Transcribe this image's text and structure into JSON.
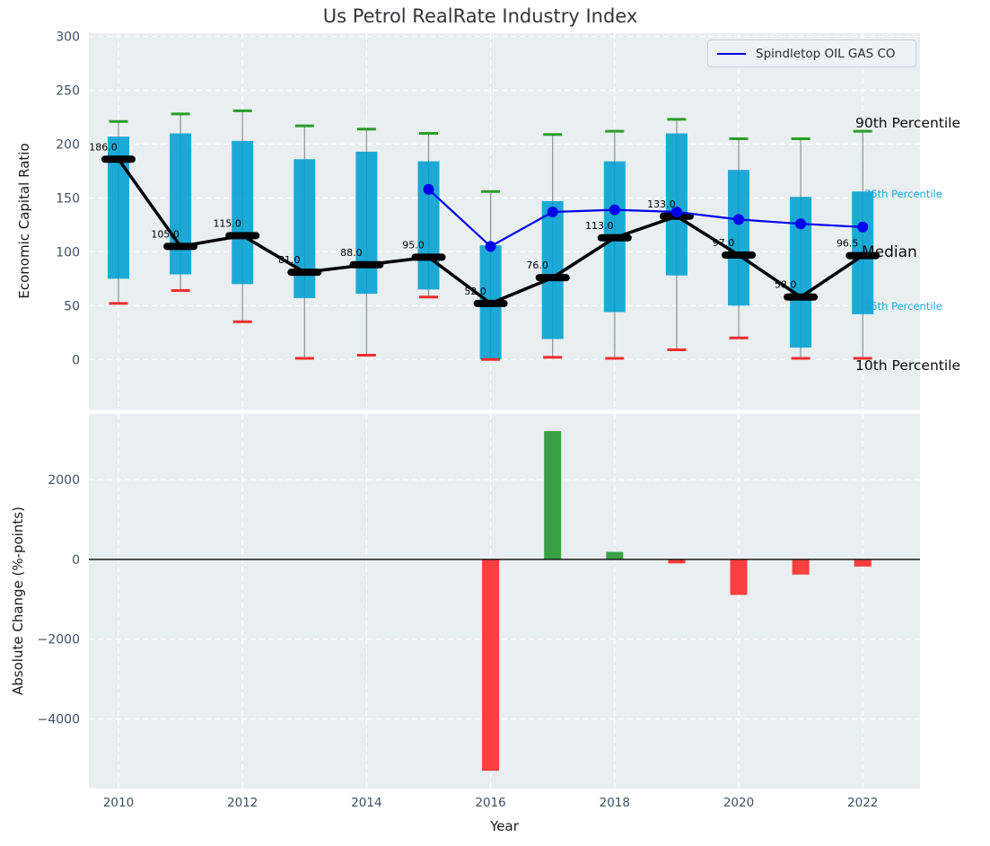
{
  "title": "Us Petrol RealRate Industry Index",
  "legend": {
    "label": "Spindletop OIL GAS CO"
  },
  "annotations": {
    "p90": "90th Percentile",
    "p75": "75th Percentile",
    "median": "Median",
    "p25": "25th Percentile",
    "p10": "10th Percentile"
  },
  "colors": {
    "plot_bg": "#e9eef0",
    "grid": "#ffffff",
    "box": "#009fd0",
    "whisker": "#909090",
    "cap_top": "#2a9d2a",
    "cap_bottom": "#ed2d2d",
    "median_line": "#000000",
    "company_line": "#0000f0",
    "bar_positive": "#3aa044",
    "bar_negative": "#fb3e3e",
    "zero_line": "#1a1a1a",
    "tick_text": "#3e5063"
  },
  "chart_data": [
    {
      "type": "boxplot+line",
      "title": "Us Petrol RealRate Industry Index",
      "ylabel": "Economic Capital Ratio",
      "ylim": [
        -46.5,
        303
      ],
      "yticks": [
        0,
        50,
        100,
        150,
        200,
        250,
        300
      ],
      "grid": true,
      "legend_position": "upper right",
      "categories": [
        2010,
        2011,
        2012,
        2013,
        2014,
        2015,
        2016,
        2017,
        2018,
        2019,
        2020,
        2021,
        2022
      ],
      "boxes": {
        "p90": [
          221,
          228,
          231,
          217,
          214,
          210,
          156,
          209,
          212,
          223,
          205,
          205,
          212
        ],
        "p75": [
          207,
          210,
          203,
          186,
          193,
          184,
          106,
          147,
          184,
          210,
          176,
          151,
          156
        ],
        "median": [
          186,
          105,
          115,
          81,
          88,
          95,
          52,
          76,
          113,
          133,
          97,
          58,
          96.5
        ],
        "p25": [
          75,
          79,
          70,
          57,
          61,
          65,
          0,
          19,
          44,
          78,
          50,
          11,
          42
        ],
        "p10": [
          52,
          64,
          35,
          1,
          4,
          58,
          0,
          2,
          1,
          9,
          20,
          1,
          1
        ]
      },
      "median_labels": [
        "186.0",
        "105.0",
        "115.0",
        "81.0",
        "88.0",
        "95.0",
        "52.0",
        "76.0",
        "113.0",
        "133.0",
        "97.0",
        "58.0",
        "96.5"
      ],
      "series": [
        {
          "name": "Spindletop OIL GAS CO",
          "x": [
            2015,
            2016,
            2017,
            2018,
            2019,
            2020,
            2021,
            2022
          ],
          "values": [
            158,
            105,
            137,
            139,
            137,
            130,
            126,
            123
          ]
        }
      ]
    },
    {
      "type": "bar",
      "ylabel": "Absolute Change (%-points)",
      "xlabel": "Year",
      "ylim": [
        -5746,
        3647
      ],
      "yticks": [
        2000,
        0,
        -2000,
        -4000
      ],
      "xticks": [
        2010,
        2012,
        2014,
        2016,
        2018,
        2020,
        2022
      ],
      "grid": true,
      "categories": [
        2010,
        2011,
        2012,
        2013,
        2014,
        2015,
        2016,
        2017,
        2018,
        2019,
        2020,
        2021,
        2022
      ],
      "values": [
        0,
        0,
        0,
        0,
        0,
        0,
        -5300,
        3220,
        190,
        -100,
        -890,
        -380,
        -180
      ]
    }
  ]
}
